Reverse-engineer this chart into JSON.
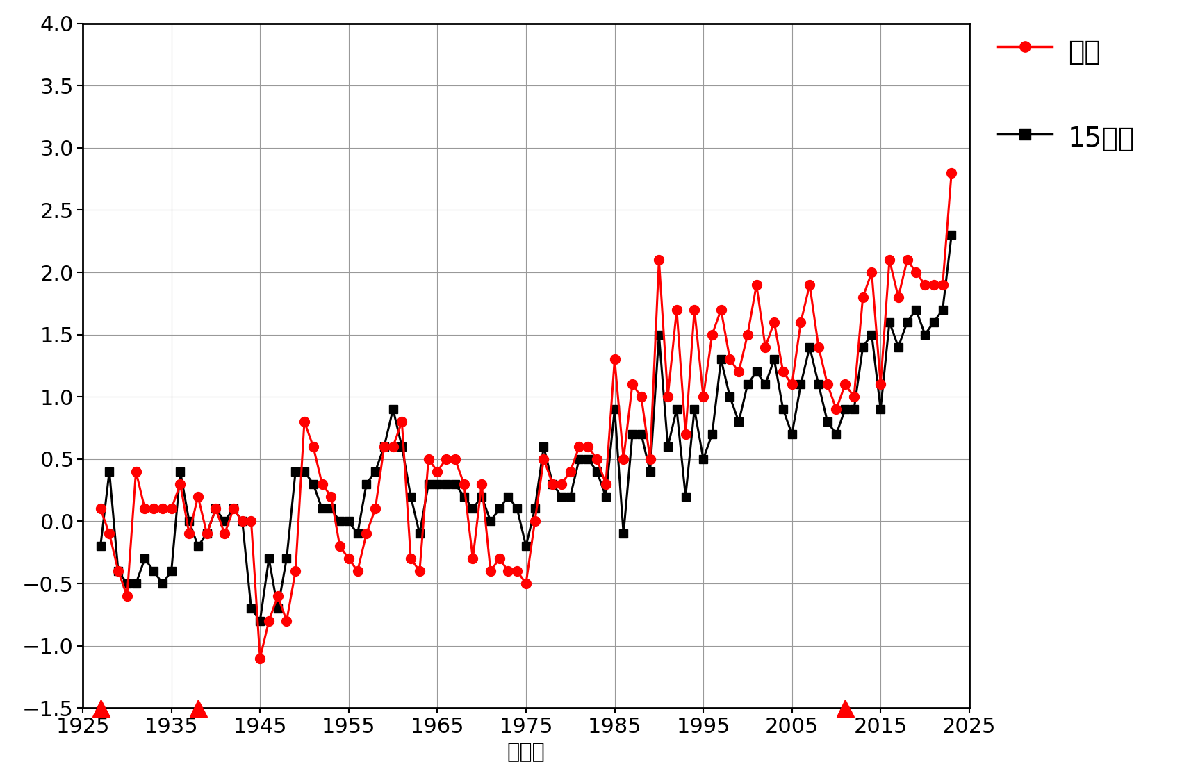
{
  "title": "",
  "xlabel": "（年）",
  "ylabel": "",
  "xlim": [
    1925,
    2025
  ],
  "ylim": [
    -1.5,
    4.0
  ],
  "yticks": [
    -1.5,
    -1.0,
    -0.5,
    0.0,
    0.5,
    1.0,
    1.5,
    2.0,
    2.5,
    3.0,
    3.5,
    4.0
  ],
  "xticks": [
    1925,
    1935,
    1945,
    1955,
    1965,
    1975,
    1985,
    1995,
    2005,
    2015,
    2025
  ],
  "niigata_color": "#FF0000",
  "avg15_color": "#000000",
  "triangle_years": [
    1927,
    1938,
    2011
  ],
  "triangle_y": -1.5,
  "niigata": {
    "years": [
      1927,
      1928,
      1929,
      1930,
      1931,
      1932,
      1933,
      1934,
      1935,
      1936,
      1937,
      1938,
      1939,
      1940,
      1941,
      1942,
      1943,
      1944,
      1945,
      1946,
      1947,
      1948,
      1949,
      1950,
      1951,
      1952,
      1953,
      1954,
      1955,
      1956,
      1957,
      1958,
      1959,
      1960,
      1961,
      1962,
      1963,
      1964,
      1965,
      1966,
      1967,
      1968,
      1969,
      1970,
      1971,
      1972,
      1973,
      1974,
      1975,
      1976,
      1977,
      1978,
      1979,
      1980,
      1981,
      1982,
      1983,
      1984,
      1985,
      1986,
      1987,
      1988,
      1989,
      1990,
      1991,
      1992,
      1993,
      1994,
      1995,
      1996,
      1997,
      1998,
      1999,
      2000,
      2001,
      2002,
      2003,
      2004,
      2005,
      2006,
      2007,
      2008,
      2009,
      2010,
      2011,
      2012,
      2013,
      2014,
      2015,
      2016,
      2017,
      2018,
      2019,
      2020,
      2021,
      2022,
      2023
    ],
    "values": [
      0.1,
      -0.1,
      -0.4,
      -0.6,
      0.4,
      0.1,
      0.1,
      0.1,
      0.1,
      0.3,
      -0.1,
      0.2,
      -0.1,
      0.1,
      -0.1,
      0.1,
      0.0,
      0.0,
      -1.1,
      -0.8,
      -0.6,
      -0.8,
      -0.4,
      0.8,
      0.6,
      0.3,
      0.2,
      -0.2,
      -0.3,
      -0.4,
      -0.1,
      0.1,
      0.6,
      0.6,
      0.8,
      -0.3,
      -0.4,
      0.5,
      0.4,
      0.5,
      0.5,
      0.3,
      -0.3,
      0.3,
      -0.4,
      -0.3,
      -0.4,
      -0.4,
      -0.5,
      0.0,
      0.5,
      0.3,
      0.3,
      0.4,
      0.6,
      0.6,
      0.5,
      0.3,
      1.3,
      0.5,
      1.1,
      1.0,
      0.5,
      2.1,
      1.0,
      1.7,
      0.7,
      1.7,
      1.0,
      1.5,
      1.7,
      1.3,
      1.2,
      1.5,
      1.9,
      1.4,
      1.6,
      1.2,
      1.1,
      1.6,
      1.9,
      1.4,
      1.1,
      0.9,
      1.1,
      1.0,
      1.8,
      2.0,
      1.1,
      2.1,
      1.8,
      2.1,
      2.0,
      1.9,
      1.9,
      1.9,
      2.8
    ]
  },
  "avg15": {
    "years": [
      1927,
      1928,
      1929,
      1930,
      1931,
      1932,
      1933,
      1934,
      1935,
      1936,
      1937,
      1938,
      1939,
      1940,
      1941,
      1942,
      1943,
      1944,
      1945,
      1946,
      1947,
      1948,
      1949,
      1950,
      1951,
      1952,
      1953,
      1954,
      1955,
      1956,
      1957,
      1958,
      1959,
      1960,
      1961,
      1962,
      1963,
      1964,
      1965,
      1966,
      1967,
      1968,
      1969,
      1970,
      1971,
      1972,
      1973,
      1974,
      1975,
      1976,
      1977,
      1978,
      1979,
      1980,
      1981,
      1982,
      1983,
      1984,
      1985,
      1986,
      1987,
      1988,
      1989,
      1990,
      1991,
      1992,
      1993,
      1994,
      1995,
      1996,
      1997,
      1998,
      1999,
      2000,
      2001,
      2002,
      2003,
      2004,
      2005,
      2006,
      2007,
      2008,
      2009,
      2010,
      2011,
      2012,
      2013,
      2014,
      2015,
      2016,
      2017,
      2018,
      2019,
      2020,
      2021,
      2022,
      2023
    ],
    "values": [
      -0.2,
      0.4,
      -0.4,
      -0.5,
      -0.5,
      -0.3,
      -0.4,
      -0.5,
      -0.4,
      0.4,
      0.0,
      -0.2,
      -0.1,
      0.1,
      0.0,
      0.1,
      0.0,
      -0.7,
      -0.8,
      -0.3,
      -0.7,
      -0.3,
      0.4,
      0.4,
      0.3,
      0.1,
      0.1,
      0.0,
      0.0,
      -0.1,
      0.3,
      0.4,
      0.6,
      0.9,
      0.6,
      0.2,
      -0.1,
      0.3,
      0.3,
      0.3,
      0.3,
      0.2,
      0.1,
      0.2,
      0.0,
      0.1,
      0.2,
      0.1,
      -0.2,
      0.1,
      0.6,
      0.3,
      0.2,
      0.2,
      0.5,
      0.5,
      0.4,
      0.2,
      0.9,
      -0.1,
      0.7,
      0.7,
      0.4,
      1.5,
      0.6,
      0.9,
      0.2,
      0.9,
      0.5,
      0.7,
      1.3,
      1.0,
      0.8,
      1.1,
      1.2,
      1.1,
      1.3,
      0.9,
      0.7,
      1.1,
      1.4,
      1.1,
      0.8,
      0.7,
      0.9,
      0.9,
      1.4,
      1.5,
      0.9,
      1.6,
      1.4,
      1.6,
      1.7,
      1.5,
      1.6,
      1.7,
      2.3
    ]
  },
  "background_color": "#FFFFFF",
  "grid_color": "#999999",
  "legend_niigata": "新潟",
  "legend_avg15": "15地点",
  "tick_fontsize": 22,
  "xlabel_fontsize": 22,
  "legend_fontsize": 28
}
